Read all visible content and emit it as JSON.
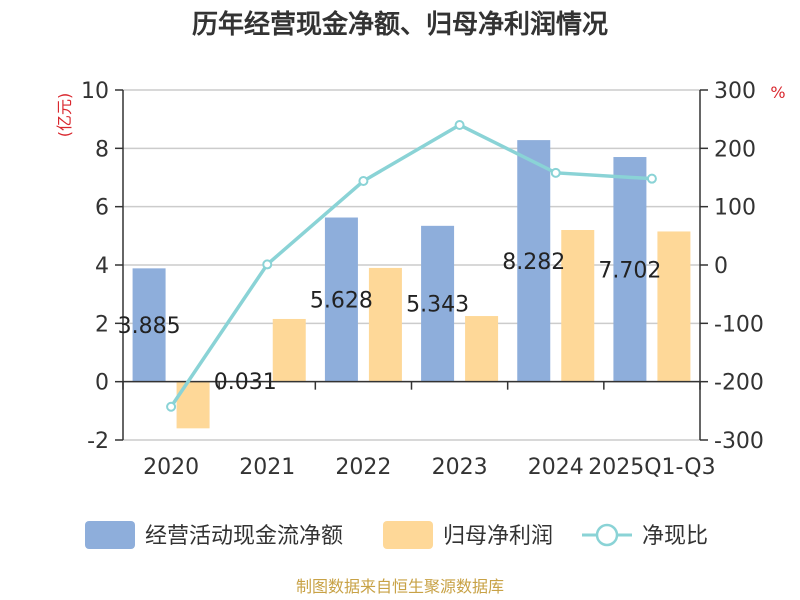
{
  "chart_data": {
    "type": "bar",
    "title": "历年经营现金净额、归母净利润情况",
    "categories": [
      "2020",
      "2021",
      "2022",
      "2023",
      "2024",
      "2025Q1-Q3"
    ],
    "series": [
      {
        "name": "经营活动现金流净额",
        "kind": "bar",
        "axis": "left",
        "color": "#8eaedb",
        "values": [
          3.885,
          0.031,
          5.628,
          5.343,
          8.282,
          7.702
        ],
        "labels": [
          "3.885",
          "0.031",
          "5.628",
          "5.343",
          "8.282",
          "7.702"
        ]
      },
      {
        "name": "归母净利润",
        "kind": "bar",
        "axis": "left",
        "color": "#fed898",
        "values": [
          -1.6,
          2.15,
          3.9,
          2.25,
          5.2,
          5.15
        ]
      },
      {
        "name": "净现比",
        "kind": "line",
        "axis": "right",
        "color": "#8ad3d6",
        "values": [
          -243,
          1,
          144,
          240,
          158,
          148
        ]
      }
    ],
    "left_axis": {
      "label": "(亿元)",
      "min": -2,
      "max": 10,
      "ticks": [
        "10",
        "8",
        "6",
        "4",
        "2",
        "0",
        "-2"
      ],
      "tick_values": [
        10,
        8,
        6,
        4,
        2,
        0,
        -2
      ]
    },
    "right_axis": {
      "label": "%",
      "min": -300,
      "max": 300,
      "ticks": [
        "300",
        "200",
        "100",
        "0",
        "-100",
        "-200",
        "-300"
      ],
      "tick_values": [
        300,
        200,
        100,
        0,
        -100,
        -200,
        -300
      ]
    },
    "legend_position": "bottom",
    "grid": true
  },
  "footer": "制图数据来自恒生聚源数据库"
}
